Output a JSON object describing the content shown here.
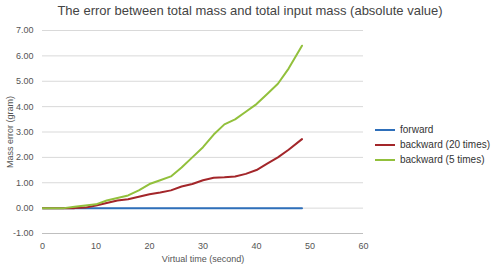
{
  "chart_data": {
    "type": "line",
    "title": "The error between total mass and total input mass (absolute value)",
    "x_label": "Virtual time (second)",
    "y_label": "Mass error (gram)",
    "x": [
      0,
      2,
      4,
      6,
      8,
      10,
      12,
      14,
      16,
      18,
      20,
      22,
      24,
      26,
      28,
      30,
      32,
      34,
      36,
      38,
      40,
      42,
      44,
      46,
      48.5
    ],
    "series": [
      {
        "name": "forward",
        "color": "#2e6fba",
        "values": [
          0,
          0,
          0,
          0,
          0,
          0,
          0,
          0,
          0,
          0,
          0,
          0,
          0,
          0,
          0,
          0,
          0,
          0,
          0,
          0,
          0,
          0,
          0,
          0,
          0
        ]
      },
      {
        "name": "backward (20 times)",
        "color": "#a3262a",
        "values": [
          0,
          0,
          0,
          0,
          0.02,
          0.1,
          0.2,
          0.3,
          0.35,
          0.45,
          0.55,
          0.62,
          0.7,
          0.85,
          0.95,
          1.1,
          1.2,
          1.22,
          1.25,
          1.35,
          1.5,
          1.75,
          2.0,
          2.3,
          2.72
        ]
      },
      {
        "name": "backward (5 times)",
        "color": "#92c03c",
        "values": [
          0,
          0,
          0,
          0.05,
          0.1,
          0.15,
          0.3,
          0.4,
          0.5,
          0.7,
          0.95,
          1.1,
          1.25,
          1.6,
          2.0,
          2.4,
          2.9,
          3.3,
          3.5,
          3.8,
          4.1,
          4.5,
          4.9,
          5.5,
          6.4
        ]
      }
    ],
    "xlim": [
      0,
      60
    ],
    "xticks": [
      0,
      10,
      20,
      30,
      40,
      50,
      60
    ],
    "ylim": [
      -1,
      7
    ],
    "yticks": [
      {
        "value": -1,
        "label": "-1.00"
      },
      {
        "value": 0,
        "label": "0.00"
      },
      {
        "value": 1,
        "label": "1.00"
      },
      {
        "value": 2,
        "label": "2.00"
      },
      {
        "value": 3,
        "label": "3.00"
      },
      {
        "value": 4,
        "label": "4.00"
      },
      {
        "value": 5,
        "label": "5.00"
      },
      {
        "value": 6,
        "label": "6.00"
      },
      {
        "value": 7,
        "label": "7.00"
      }
    ],
    "grid": true,
    "legend": "right"
  }
}
